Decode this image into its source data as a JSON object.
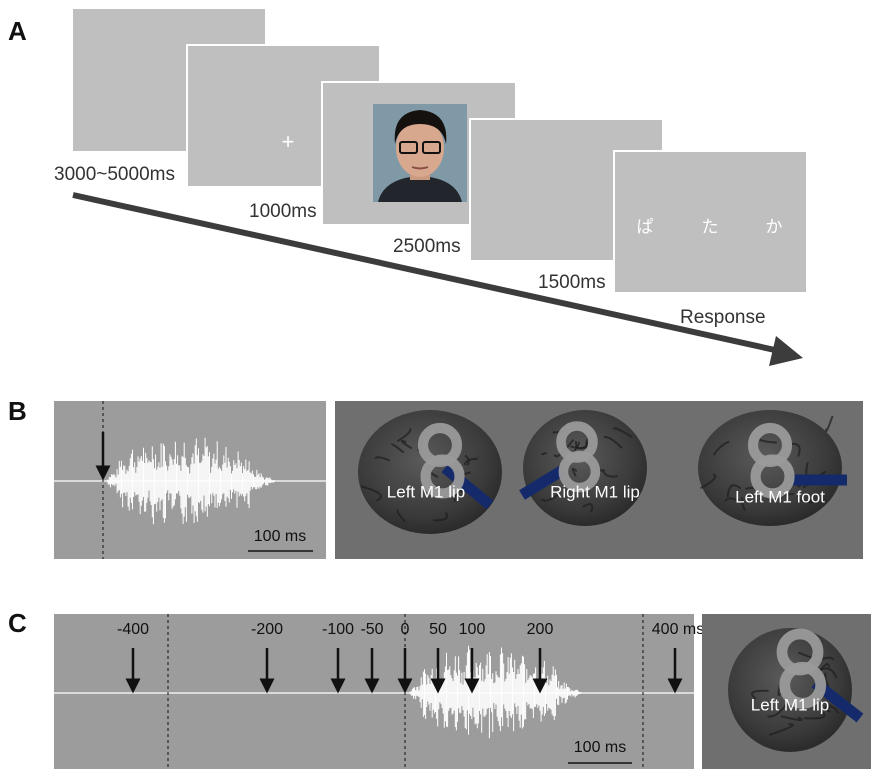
{
  "panel_labels": [
    "A",
    "B",
    "C"
  ],
  "panel_a": {
    "durations": [
      "3000~5000ms",
      "1000ms",
      "2500ms",
      "1500ms"
    ],
    "fixation": "+",
    "syllables": [
      "ぱ",
      "た",
      "か"
    ],
    "response": "Response"
  },
  "panel_b": {
    "scale_bar": "100 ms",
    "coil_sites": [
      "Left M1 lip",
      "Right M1 lip",
      "Left M1 foot"
    ]
  },
  "panel_c": {
    "time_labels": [
      "-400",
      "-200",
      "-100",
      "-50",
      "0",
      "50",
      "100",
      "200",
      "400 ms"
    ],
    "scale_bar": "100 ms",
    "coil_site": "Left M1 lip"
  }
}
